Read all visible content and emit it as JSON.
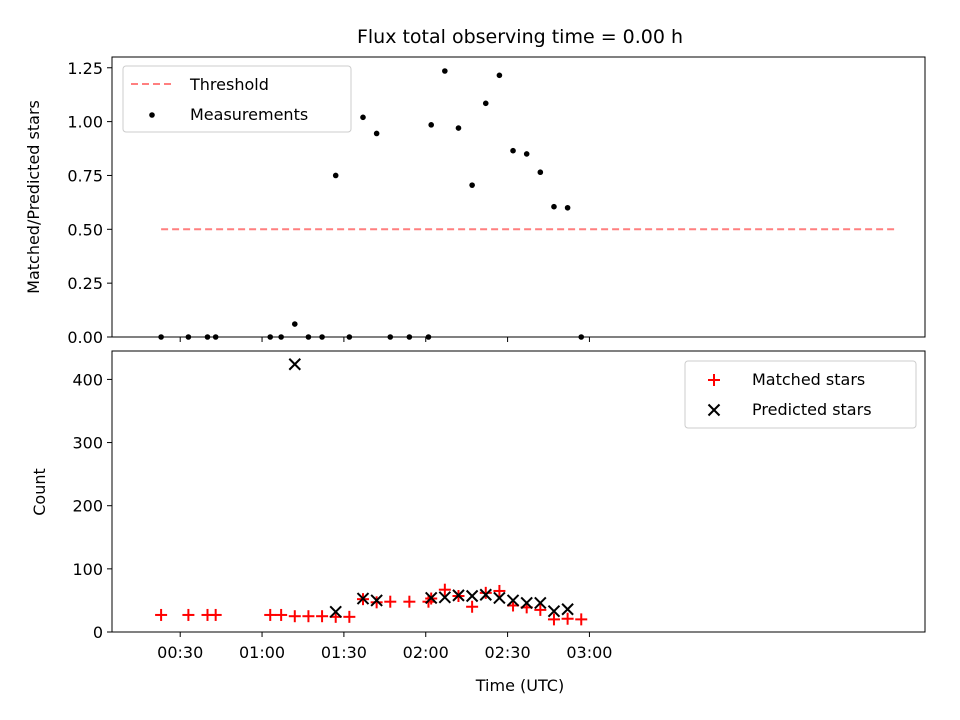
{
  "chart_data": [
    {
      "type": "scatter",
      "title": "Flux total observing time = 0.00 h",
      "xlabel": "",
      "ylabel": "Matched/Predicted stars",
      "xunit": "minutes after 00:00 UTC",
      "xlim": [
        5,
        303
      ],
      "ylim": [
        0,
        1.3
      ],
      "yticks": [
        0.0,
        0.25,
        0.5,
        0.75,
        1.0,
        1.25
      ],
      "ytick_labels": [
        "0.00",
        "0.25",
        "0.50",
        "0.75",
        "1.00",
        "1.25"
      ],
      "grid": false,
      "legend": "top-left",
      "colors": {
        "threshold": "#ff7f7f",
        "measurements": "#000000"
      },
      "series": [
        {
          "name": "Threshold",
          "kind": "dashed-line",
          "points": [
            [
              23,
              0.5
            ],
            [
              293,
              0.5
            ]
          ]
        },
        {
          "name": "Measurements",
          "kind": "dot",
          "points": [
            [
              23,
              0.0
            ],
            [
              33,
              0.0
            ],
            [
              40,
              0.0
            ],
            [
              43,
              0.0
            ],
            [
              63,
              0.0
            ],
            [
              67,
              0.0
            ],
            [
              72,
              0.06
            ],
            [
              77,
              0.0
            ],
            [
              82,
              0.0
            ],
            [
              87,
              0.75
            ],
            [
              92,
              0.0
            ],
            [
              97,
              1.02
            ],
            [
              102,
              0.945
            ],
            [
              107,
              0.0
            ],
            [
              114,
              0.0
            ],
            [
              121,
              0.0
            ],
            [
              122,
              0.985
            ],
            [
              127,
              1.235
            ],
            [
              132,
              0.97
            ],
            [
              137,
              0.705
            ],
            [
              142,
              1.085
            ],
            [
              147,
              1.215
            ],
            [
              152,
              0.865
            ],
            [
              157,
              0.85
            ],
            [
              162,
              0.765
            ],
            [
              167,
              0.605
            ],
            [
              172,
              0.6
            ],
            [
              177,
              0.0
            ]
          ]
        }
      ]
    },
    {
      "type": "scatter",
      "title": "",
      "xlabel": "Time (UTC)",
      "ylabel": "Count",
      "xunit": "minutes after 00:00 UTC",
      "xlim": [
        5,
        303
      ],
      "ylim": [
        0,
        445
      ],
      "yticks": [
        0,
        100,
        200,
        300,
        400
      ],
      "ytick_labels": [
        "0",
        "100",
        "200",
        "300",
        "400"
      ],
      "xticks": [
        30,
        60,
        90,
        120,
        150,
        180
      ],
      "xtick_labels": [
        "00:30",
        "01:00",
        "01:30",
        "02:00",
        "02:30",
        "03:00"
      ],
      "grid": false,
      "legend": "top-right",
      "colors": {
        "matched": "#ff0000",
        "predicted": "#000000"
      },
      "series": [
        {
          "name": "Matched stars",
          "marker": "plus",
          "points": [
            [
              23,
              27
            ],
            [
              33,
              27
            ],
            [
              40,
              27
            ],
            [
              43,
              27
            ],
            [
              63,
              27
            ],
            [
              67,
              27
            ],
            [
              72,
              25
            ],
            [
              77,
              25
            ],
            [
              82,
              25
            ],
            [
              87,
              24
            ],
            [
              92,
              24
            ],
            [
              97,
              52
            ],
            [
              102,
              47
            ],
            [
              107,
              48
            ],
            [
              114,
              48
            ],
            [
              121,
              48
            ],
            [
              122,
              53
            ],
            [
              127,
              67
            ],
            [
              132,
              57
            ],
            [
              137,
              40
            ],
            [
              142,
              62
            ],
            [
              147,
              65
            ],
            [
              152,
              42
            ],
            [
              157,
              39
            ],
            [
              162,
              35
            ],
            [
              167,
              20
            ],
            [
              172,
              21
            ],
            [
              177,
              20
            ]
          ]
        },
        {
          "name": "Predicted stars",
          "marker": "x",
          "points": [
            [
              72,
              424
            ],
            [
              87,
              32
            ],
            [
              97,
              53
            ],
            [
              102,
              50
            ],
            [
              122,
              54
            ],
            [
              127,
              55
            ],
            [
              132,
              58
            ],
            [
              137,
              57
            ],
            [
              142,
              59
            ],
            [
              147,
              54
            ],
            [
              152,
              50
            ],
            [
              157,
              46
            ],
            [
              162,
              46
            ],
            [
              167,
              33
            ],
            [
              172,
              36
            ]
          ]
        }
      ]
    }
  ]
}
